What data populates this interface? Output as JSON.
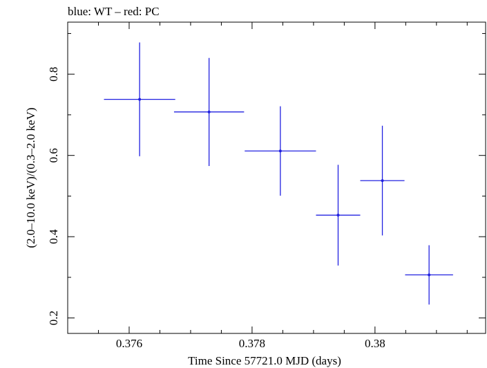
{
  "chart_data": {
    "type": "scatter",
    "title": "blue: WT – red: PC",
    "xlabel": "Time Since 57721.0 MJD (days)",
    "ylabel": "(2.0–10.0 keV)/(0.3–2.0 keV)",
    "xlim": [
      0.375,
      0.3818
    ],
    "ylim": [
      0.162,
      0.928
    ],
    "x_ticks": [
      0.376,
      0.378,
      0.38
    ],
    "x_tick_labels": [
      "0.376",
      "0.378",
      "0.38"
    ],
    "y_ticks": [
      0.2,
      0.4,
      0.6,
      0.8
    ],
    "y_tick_labels": [
      "0.2",
      "0.4",
      "0.6",
      "0.8"
    ],
    "grid": false,
    "series": [
      {
        "color": "#2020e0",
        "points": [
          {
            "x": 0.37617,
            "y": 0.738,
            "xerr": 0.00058,
            "yerr_low": 0.14,
            "yerr_high": 0.14
          },
          {
            "x": 0.3773,
            "y": 0.707,
            "xerr": 0.00057,
            "yerr_low": 0.133,
            "yerr_high": 0.133
          },
          {
            "x": 0.37846,
            "y": 0.611,
            "xerr": 0.00058,
            "yerr_low": 0.11,
            "yerr_high": 0.11
          },
          {
            "x": 0.3794,
            "y": 0.453,
            "xerr": 0.00036,
            "yerr_low": 0.124,
            "yerr_high": 0.124
          },
          {
            "x": 0.38012,
            "y": 0.538,
            "xerr": 0.00036,
            "yerr_low": 0.135,
            "yerr_high": 0.135
          },
          {
            "x": 0.38088,
            "y": 0.306,
            "xerr": 0.00039,
            "yerr_low": 0.073,
            "yerr_high": 0.073
          }
        ]
      }
    ]
  }
}
